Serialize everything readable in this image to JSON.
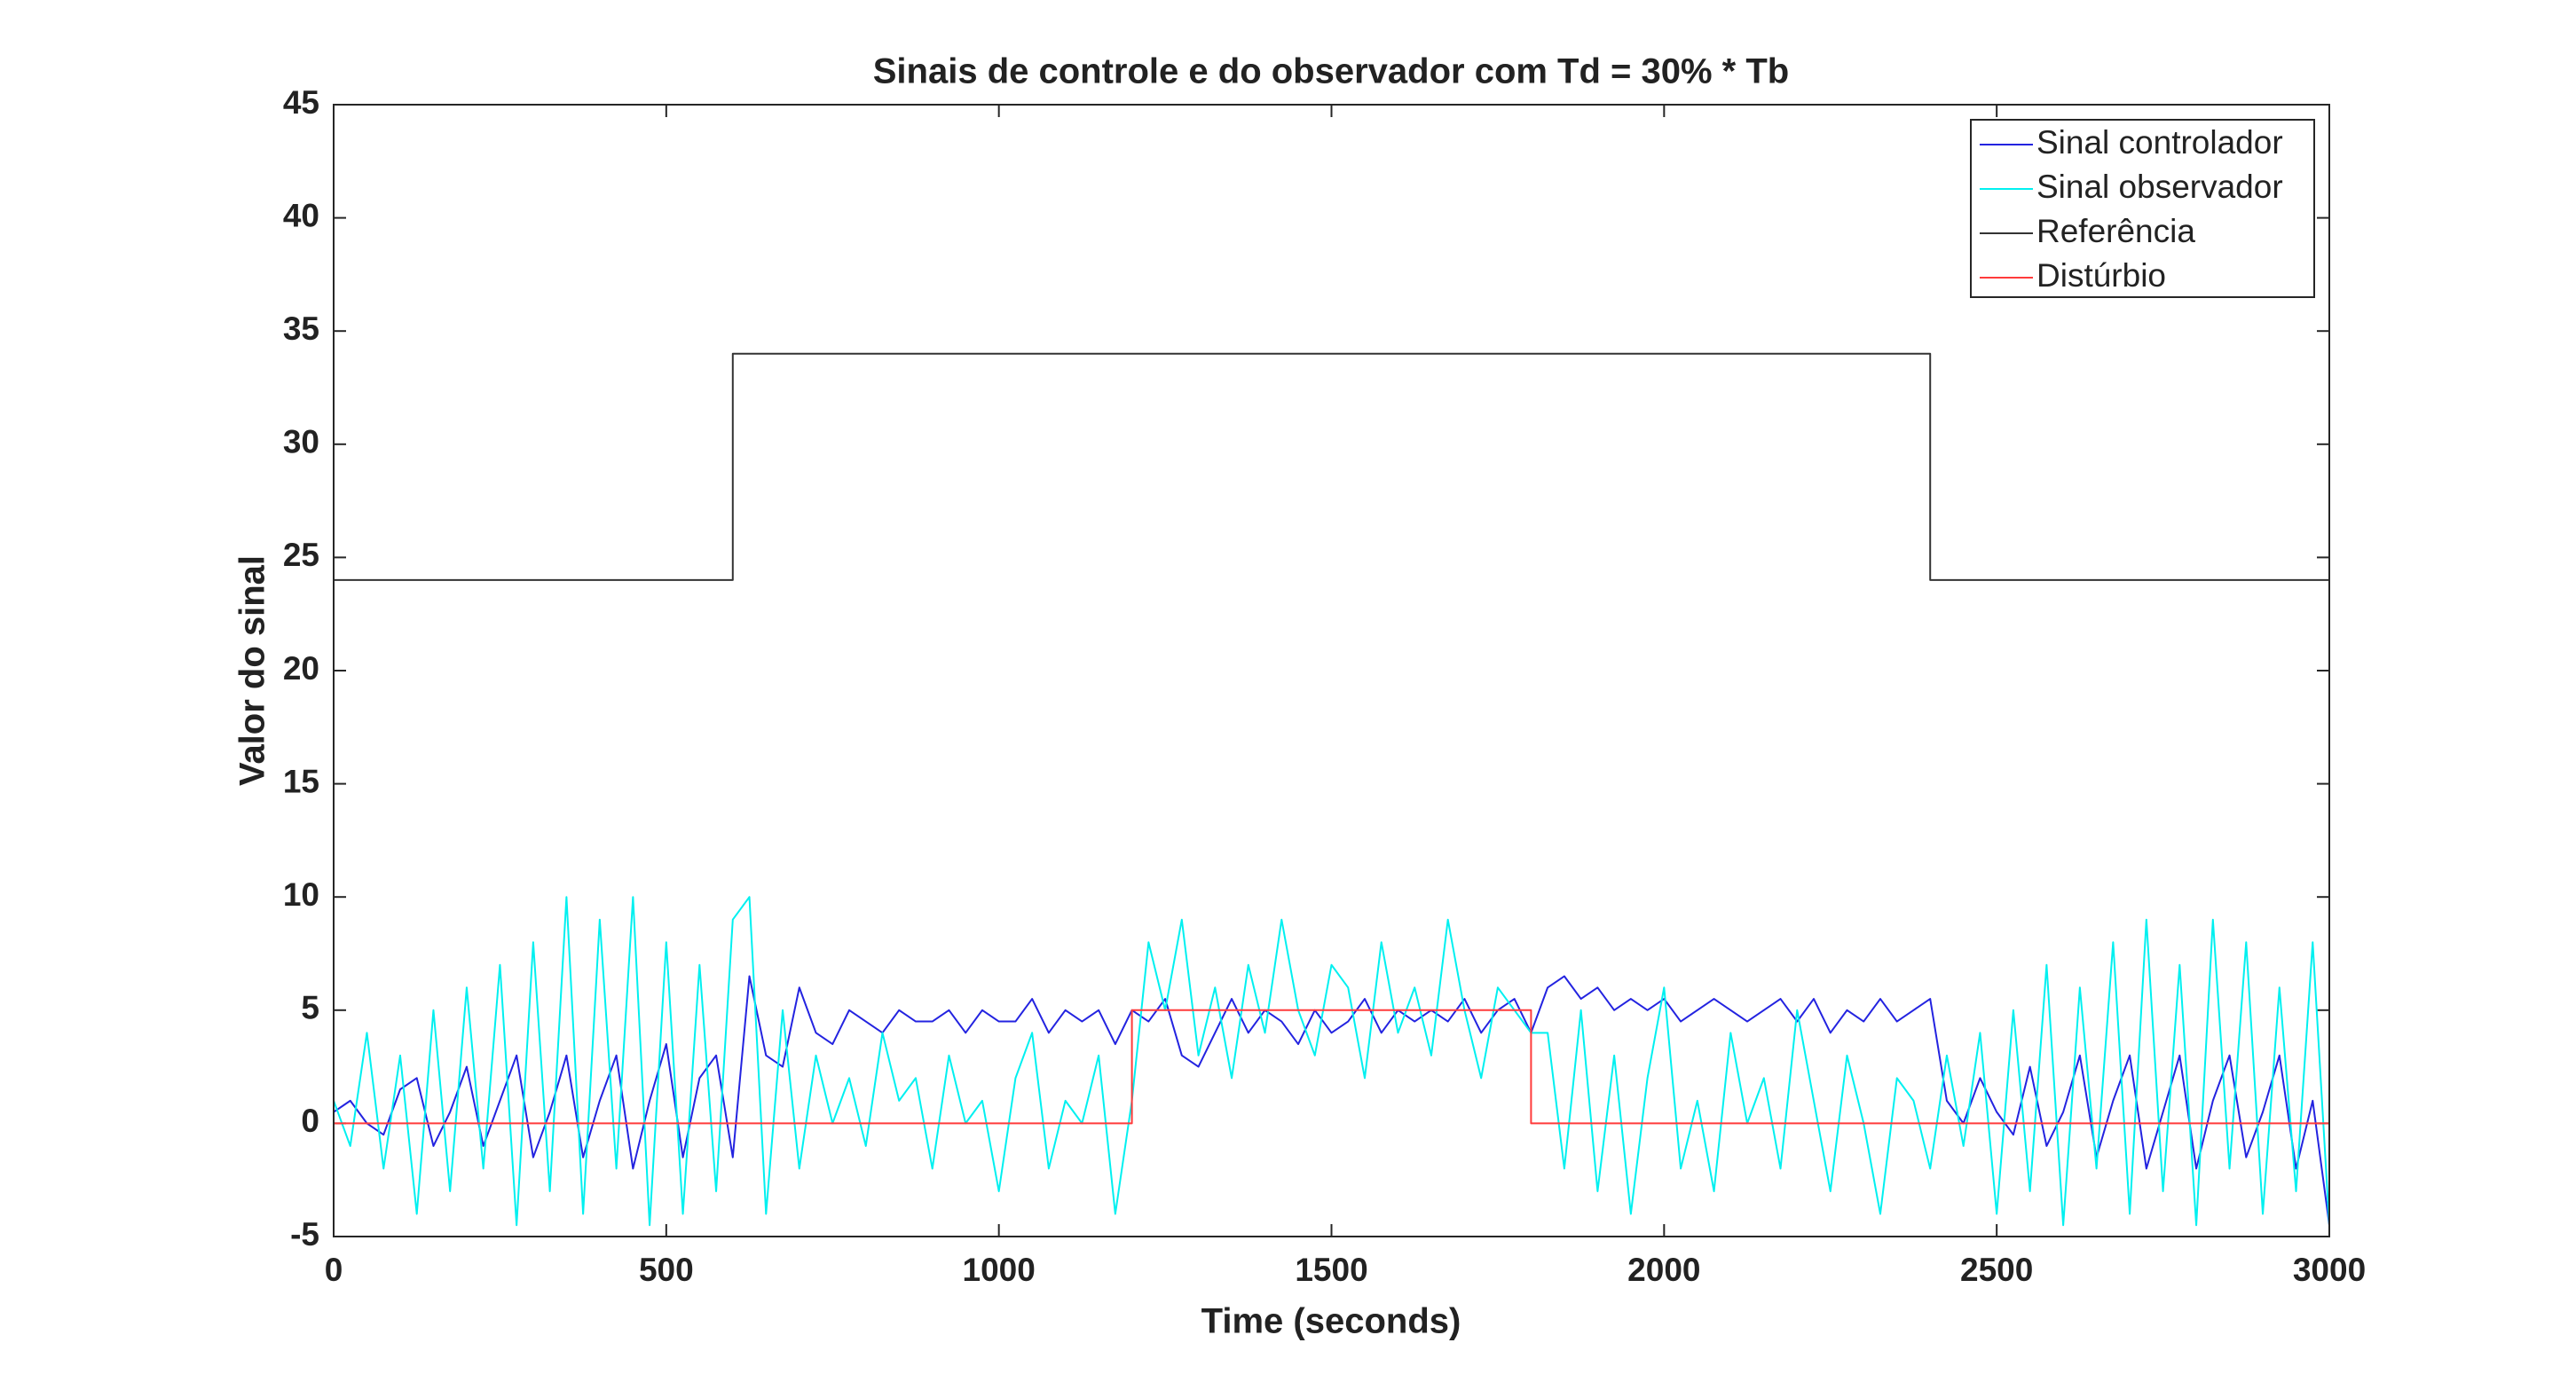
{
  "chart_data": {
    "type": "line",
    "title": "Sinais de controle e do observador com Td = 30% * Tb",
    "x_label": "Time (seconds)",
    "y_label": "Valor do sinal",
    "xlim": [
      0,
      3000
    ],
    "xticks": [
      0,
      500,
      1000,
      1500,
      2000,
      2500,
      3000
    ],
    "ylim": [
      -5,
      45
    ],
    "yticks": [
      -5,
      0,
      5,
      10,
      15,
      20,
      25,
      30,
      35,
      40,
      45
    ],
    "grid": false,
    "legend": "upper right",
    "x": [
      0,
      25,
      50,
      75,
      100,
      125,
      150,
      175,
      200,
      225,
      250,
      275,
      300,
      325,
      350,
      375,
      400,
      425,
      450,
      475,
      500,
      525,
      550,
      575,
      600,
      625,
      650,
      675,
      700,
      725,
      750,
      775,
      800,
      825,
      850,
      875,
      900,
      925,
      950,
      975,
      1000,
      1025,
      1050,
      1075,
      1100,
      1125,
      1150,
      1175,
      1200,
      1225,
      1250,
      1275,
      1300,
      1325,
      1350,
      1375,
      1400,
      1425,
      1450,
      1475,
      1500,
      1525,
      1550,
      1575,
      1600,
      1625,
      1650,
      1675,
      1700,
      1725,
      1750,
      1775,
      1800,
      1825,
      1850,
      1875,
      1900,
      1925,
      1950,
      1975,
      2000,
      2025,
      2050,
      2075,
      2100,
      2125,
      2150,
      2175,
      2200,
      2225,
      2250,
      2275,
      2300,
      2325,
      2350,
      2375,
      2400,
      2425,
      2450,
      2475,
      2500,
      2525,
      2550,
      2575,
      2600,
      2625,
      2650,
      2675,
      2700,
      2725,
      2750,
      2775,
      2800,
      2825,
      2850,
      2875,
      2900,
      2925,
      2950,
      2975,
      3000
    ],
    "series": [
      {
        "name": "Sinal controlador",
        "color": "#2323e0",
        "values": [
          0.5,
          1,
          0,
          -0.5,
          1.5,
          2,
          -1,
          0.5,
          2.5,
          -1,
          1,
          3,
          -1.5,
          0.5,
          3,
          -1.5,
          1,
          3,
          -2,
          1,
          3.5,
          -1.5,
          2,
          3,
          -1.5,
          6.5,
          3,
          2.5,
          6,
          4,
          3.5,
          5,
          4.5,
          4,
          5,
          4.5,
          4.5,
          5,
          4,
          5,
          4.5,
          4.5,
          5.5,
          4,
          5,
          4.5,
          5,
          3.5,
          5,
          4.5,
          5.5,
          3,
          2.5,
          4,
          5.5,
          4,
          5,
          4.5,
          3.5,
          5,
          4,
          4.5,
          5.5,
          4,
          5,
          4.5,
          5,
          4.5,
          5.5,
          4,
          5,
          5.5,
          4,
          6,
          6.5,
          5.5,
          6,
          5,
          5.5,
          5,
          5.5,
          4.5,
          5,
          5.5,
          5,
          4.5,
          5,
          5.5,
          4.5,
          5.5,
          4,
          5,
          4.5,
          5.5,
          4.5,
          5,
          5.5,
          1,
          0,
          2,
          0.5,
          -0.5,
          2.5,
          -1,
          0.5,
          3,
          -1.5,
          1,
          3,
          -2,
          0.5,
          3,
          -2,
          1,
          3,
          -1.5,
          0.5,
          3,
          -2,
          1,
          -4.5
        ]
      },
      {
        "name": "Sinal observador",
        "color": "#00f0f0",
        "values": [
          1,
          -1,
          4,
          -2,
          3,
          -4,
          5,
          -3,
          6,
          -2,
          7,
          -4.5,
          8,
          -3,
          10,
          -4,
          9,
          -2,
          10,
          -4.5,
          8,
          -4,
          7,
          -3,
          9,
          10,
          -4,
          5,
          -2,
          3,
          0,
          2,
          -1,
          4,
          1,
          2,
          -2,
          3,
          0,
          1,
          -3,
          2,
          4,
          -2,
          1,
          0,
          3,
          -4,
          1,
          8,
          5,
          9,
          3,
          6,
          2,
          7,
          4,
          9,
          5,
          3,
          7,
          6,
          2,
          8,
          4,
          6,
          3,
          9,
          5,
          2,
          6,
          5,
          4,
          4,
          -2,
          5,
          -3,
          3,
          -4,
          2,
          6,
          -2,
          1,
          -3,
          4,
          0,
          2,
          -2,
          5,
          1,
          -3,
          3,
          0,
          -4,
          2,
          1,
          -2,
          3,
          -1,
          4,
          -4,
          5,
          -3,
          7,
          -4.5,
          6,
          -2,
          8,
          -4,
          9,
          -3,
          7,
          -4.5,
          9,
          -2,
          8,
          -4,
          6,
          -3,
          8,
          -4.5
        ]
      },
      {
        "name": "Referência",
        "color": "#333333",
        "x": [
          0,
          600,
          600,
          2400,
          2400,
          3000
        ],
        "values": [
          24,
          24,
          34,
          34,
          24,
          24
        ]
      },
      {
        "name": "Distúrbio",
        "color": "#ff3b3b",
        "x": [
          0,
          1200,
          1200,
          1800,
          1800,
          3000
        ],
        "values": [
          0,
          0,
          5,
          5,
          0,
          0
        ]
      }
    ]
  }
}
